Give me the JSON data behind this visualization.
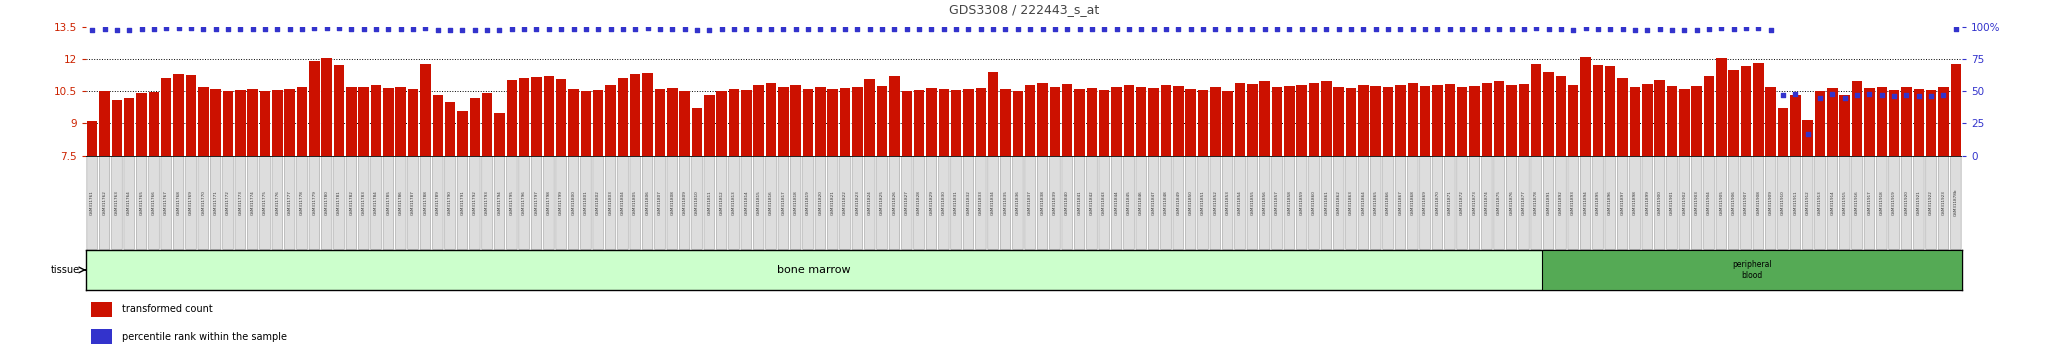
{
  "title": "GDS3308 / 222443_s_at",
  "title_color": "#444444",
  "left_ylim": [
    7.5,
    13.5
  ],
  "right_ylim": [
    0,
    100
  ],
  "left_yticks": [
    7.5,
    9.0,
    10.5,
    12.0,
    13.5
  ],
  "right_yticks": [
    0,
    25,
    50,
    75,
    100
  ],
  "left_yticklabels": [
    "7.5",
    "9",
    "10.5",
    "12",
    "13.5"
  ],
  "right_yticklabels": [
    "0",
    "25",
    "50",
    "75",
    "100%"
  ],
  "bar_color": "#cc1100",
  "dot_color": "#3333cc",
  "bg_color": "#ffffff",
  "grid_color": "#000000",
  "tick_label_color": "#cc2200",
  "right_tick_label_color": "#3333cc",
  "tissue_band_color": "#ccffcc",
  "tissue_label": "tissue",
  "bone_marrow_label": "bone marrow",
  "peripheral_blood_label": "peripheral\nblood",
  "peripheral_blood_color": "#55aa55",
  "legend_bar_label": "transformed count",
  "legend_dot_label": "percentile rank within the sample",
  "sample_ids": [
    "GSM311761",
    "GSM311762",
    "GSM311763",
    "GSM311764",
    "GSM311765",
    "GSM311766",
    "GSM311767",
    "GSM311768",
    "GSM311769",
    "GSM311770",
    "GSM311771",
    "GSM311772",
    "GSM311773",
    "GSM311774",
    "GSM311775",
    "GSM311776",
    "GSM311777",
    "GSM311778",
    "GSM311779",
    "GSM311780",
    "GSM311781",
    "GSM311782",
    "GSM311783",
    "GSM311784",
    "GSM311785",
    "GSM311786",
    "GSM311787",
    "GSM311788",
    "GSM311789",
    "GSM311790",
    "GSM311791",
    "GSM311792",
    "GSM311793",
    "GSM311794",
    "GSM311795",
    "GSM311796",
    "GSM311797",
    "GSM311798",
    "GSM311799",
    "GSM311800",
    "GSM311801",
    "GSM311802",
    "GSM311803",
    "GSM311804",
    "GSM311805",
    "GSM311806",
    "GSM311807",
    "GSM311808",
    "GSM311809",
    "GSM311810",
    "GSM311811",
    "GSM311812",
    "GSM311813",
    "GSM311814",
    "GSM311815",
    "GSM311816",
    "GSM311817",
    "GSM311818",
    "GSM311819",
    "GSM311820",
    "GSM311821",
    "GSM311822",
    "GSM311823",
    "GSM311824",
    "GSM311825",
    "GSM311826",
    "GSM311827",
    "GSM311828",
    "GSM311829",
    "GSM311830",
    "GSM311831",
    "GSM311832",
    "GSM311833",
    "GSM311834",
    "GSM311835",
    "GSM311836",
    "GSM311837",
    "GSM311838",
    "GSM311839",
    "GSM311840",
    "GSM311841",
    "GSM311842",
    "GSM311843",
    "GSM311844",
    "GSM311845",
    "GSM311846",
    "GSM311847",
    "GSM311848",
    "GSM311849",
    "GSM311850",
    "GSM311851",
    "GSM311852",
    "GSM311853",
    "GSM311854",
    "GSM311855",
    "GSM311856",
    "GSM311857",
    "GSM311858",
    "GSM311859",
    "GSM311860",
    "GSM311861",
    "GSM311862",
    "GSM311863",
    "GSM311864",
    "GSM311865",
    "GSM311866",
    "GSM311867",
    "GSM311868",
    "GSM311869",
    "GSM311870",
    "GSM311871",
    "GSM311872",
    "GSM311873",
    "GSM311874",
    "GSM311875",
    "GSM311876",
    "GSM311877",
    "GSM311878",
    "GSM311891",
    "GSM311892",
    "GSM311893",
    "GSM311894",
    "GSM311895",
    "GSM311896",
    "GSM311897",
    "GSM311898",
    "GSM311899",
    "GSM311900",
    "GSM311901",
    "GSM311902",
    "GSM311903",
    "GSM311904",
    "GSM311905",
    "GSM311906",
    "GSM311907",
    "GSM311908",
    "GSM311909",
    "GSM311910",
    "GSM311911",
    "GSM311912",
    "GSM311913",
    "GSM311914",
    "GSM311915",
    "GSM311916",
    "GSM311917",
    "GSM311918",
    "GSM311919",
    "GSM311920",
    "GSM311921",
    "GSM311922",
    "GSM311923",
    "GSM311878b"
  ],
  "n_bone_marrow": 118,
  "bar_values": [
    9.1,
    10.5,
    10.1,
    10.2,
    10.4,
    10.45,
    11.1,
    11.3,
    11.25,
    10.7,
    10.6,
    10.5,
    10.55,
    10.6,
    10.5,
    10.55,
    10.6,
    10.7,
    11.9,
    12.05,
    11.7,
    10.7,
    10.7,
    10.8,
    10.65,
    10.7,
    10.6,
    11.75,
    10.3,
    10.0,
    9.6,
    10.2,
    10.4,
    9.5,
    11.0,
    11.1,
    11.15,
    11.2,
    11.05,
    10.6,
    10.5,
    10.55,
    10.8,
    11.1,
    11.3,
    11.35,
    10.6,
    10.65,
    10.5,
    9.7,
    10.3,
    10.5,
    10.6,
    10.55,
    10.8,
    10.9,
    10.7,
    10.8,
    10.6,
    10.7,
    10.6,
    10.65,
    10.7,
    11.05,
    10.75,
    11.2,
    10.5,
    10.55,
    10.65,
    10.6,
    10.55,
    10.6,
    10.65,
    11.4,
    10.6,
    10.5,
    10.8,
    10.9,
    10.7,
    10.85,
    10.6,
    10.65,
    10.55,
    10.7,
    10.8,
    10.7,
    10.65,
    10.8,
    10.75,
    10.6,
    10.55,
    10.7,
    10.5,
    10.9,
    10.85,
    10.95,
    10.7,
    10.75,
    10.8,
    10.9,
    10.95,
    10.7,
    10.65,
    10.8,
    10.75,
    10.7,
    10.8,
    10.9,
    10.75,
    10.8,
    10.85,
    10.7,
    10.75,
    10.9,
    10.95,
    10.8,
    10.85,
    11.75,
    11.4,
    11.2,
    10.8,
    12.1,
    11.7,
    11.65,
    11.1,
    10.7,
    10.85,
    11.0,
    10.75,
    10.6,
    10.75,
    11.2,
    12.05,
    11.5,
    11.65,
    11.8,
    10.7,
    9.7,
    10.3,
    9.15,
    10.5,
    10.65,
    10.3,
    10.95,
    10.65,
    10.7,
    10.55,
    10.7,
    10.6,
    10.55,
    10.7,
    11.75
  ],
  "percentile_values": [
    97,
    98,
    97,
    97,
    98,
    98,
    99,
    99,
    99,
    98,
    98,
    98,
    98,
    98,
    98,
    98,
    98,
    98,
    99,
    99,
    99,
    98,
    98,
    98,
    98,
    98,
    98,
    99,
    97,
    97,
    97,
    97,
    97,
    97,
    98,
    98,
    98,
    98,
    98,
    98,
    98,
    98,
    98,
    98,
    98,
    99,
    98,
    98,
    98,
    97,
    97,
    98,
    98,
    98,
    98,
    98,
    98,
    98,
    98,
    98,
    98,
    98,
    98,
    98,
    98,
    98,
    98,
    98,
    98,
    98,
    98,
    98,
    98,
    98,
    98,
    98,
    98,
    98,
    98,
    98,
    98,
    98,
    98,
    98,
    98,
    98,
    98,
    98,
    98,
    98,
    98,
    98,
    98,
    98,
    98,
    98,
    98,
    98,
    98,
    98,
    98,
    98,
    98,
    98,
    98,
    98,
    98,
    98,
    98,
    98,
    98,
    98,
    98,
    98,
    98,
    98,
    98,
    99,
    98,
    98,
    97,
    99,
    98,
    98,
    98,
    97,
    97,
    98,
    97,
    97,
    97,
    98,
    99,
    98,
    99,
    99,
    97,
    47,
    48,
    17,
    45,
    48,
    45,
    47,
    48,
    47,
    46,
    47,
    46,
    46,
    47,
    98
  ],
  "figsize": [
    20.48,
    3.54
  ],
  "dpi": 100
}
